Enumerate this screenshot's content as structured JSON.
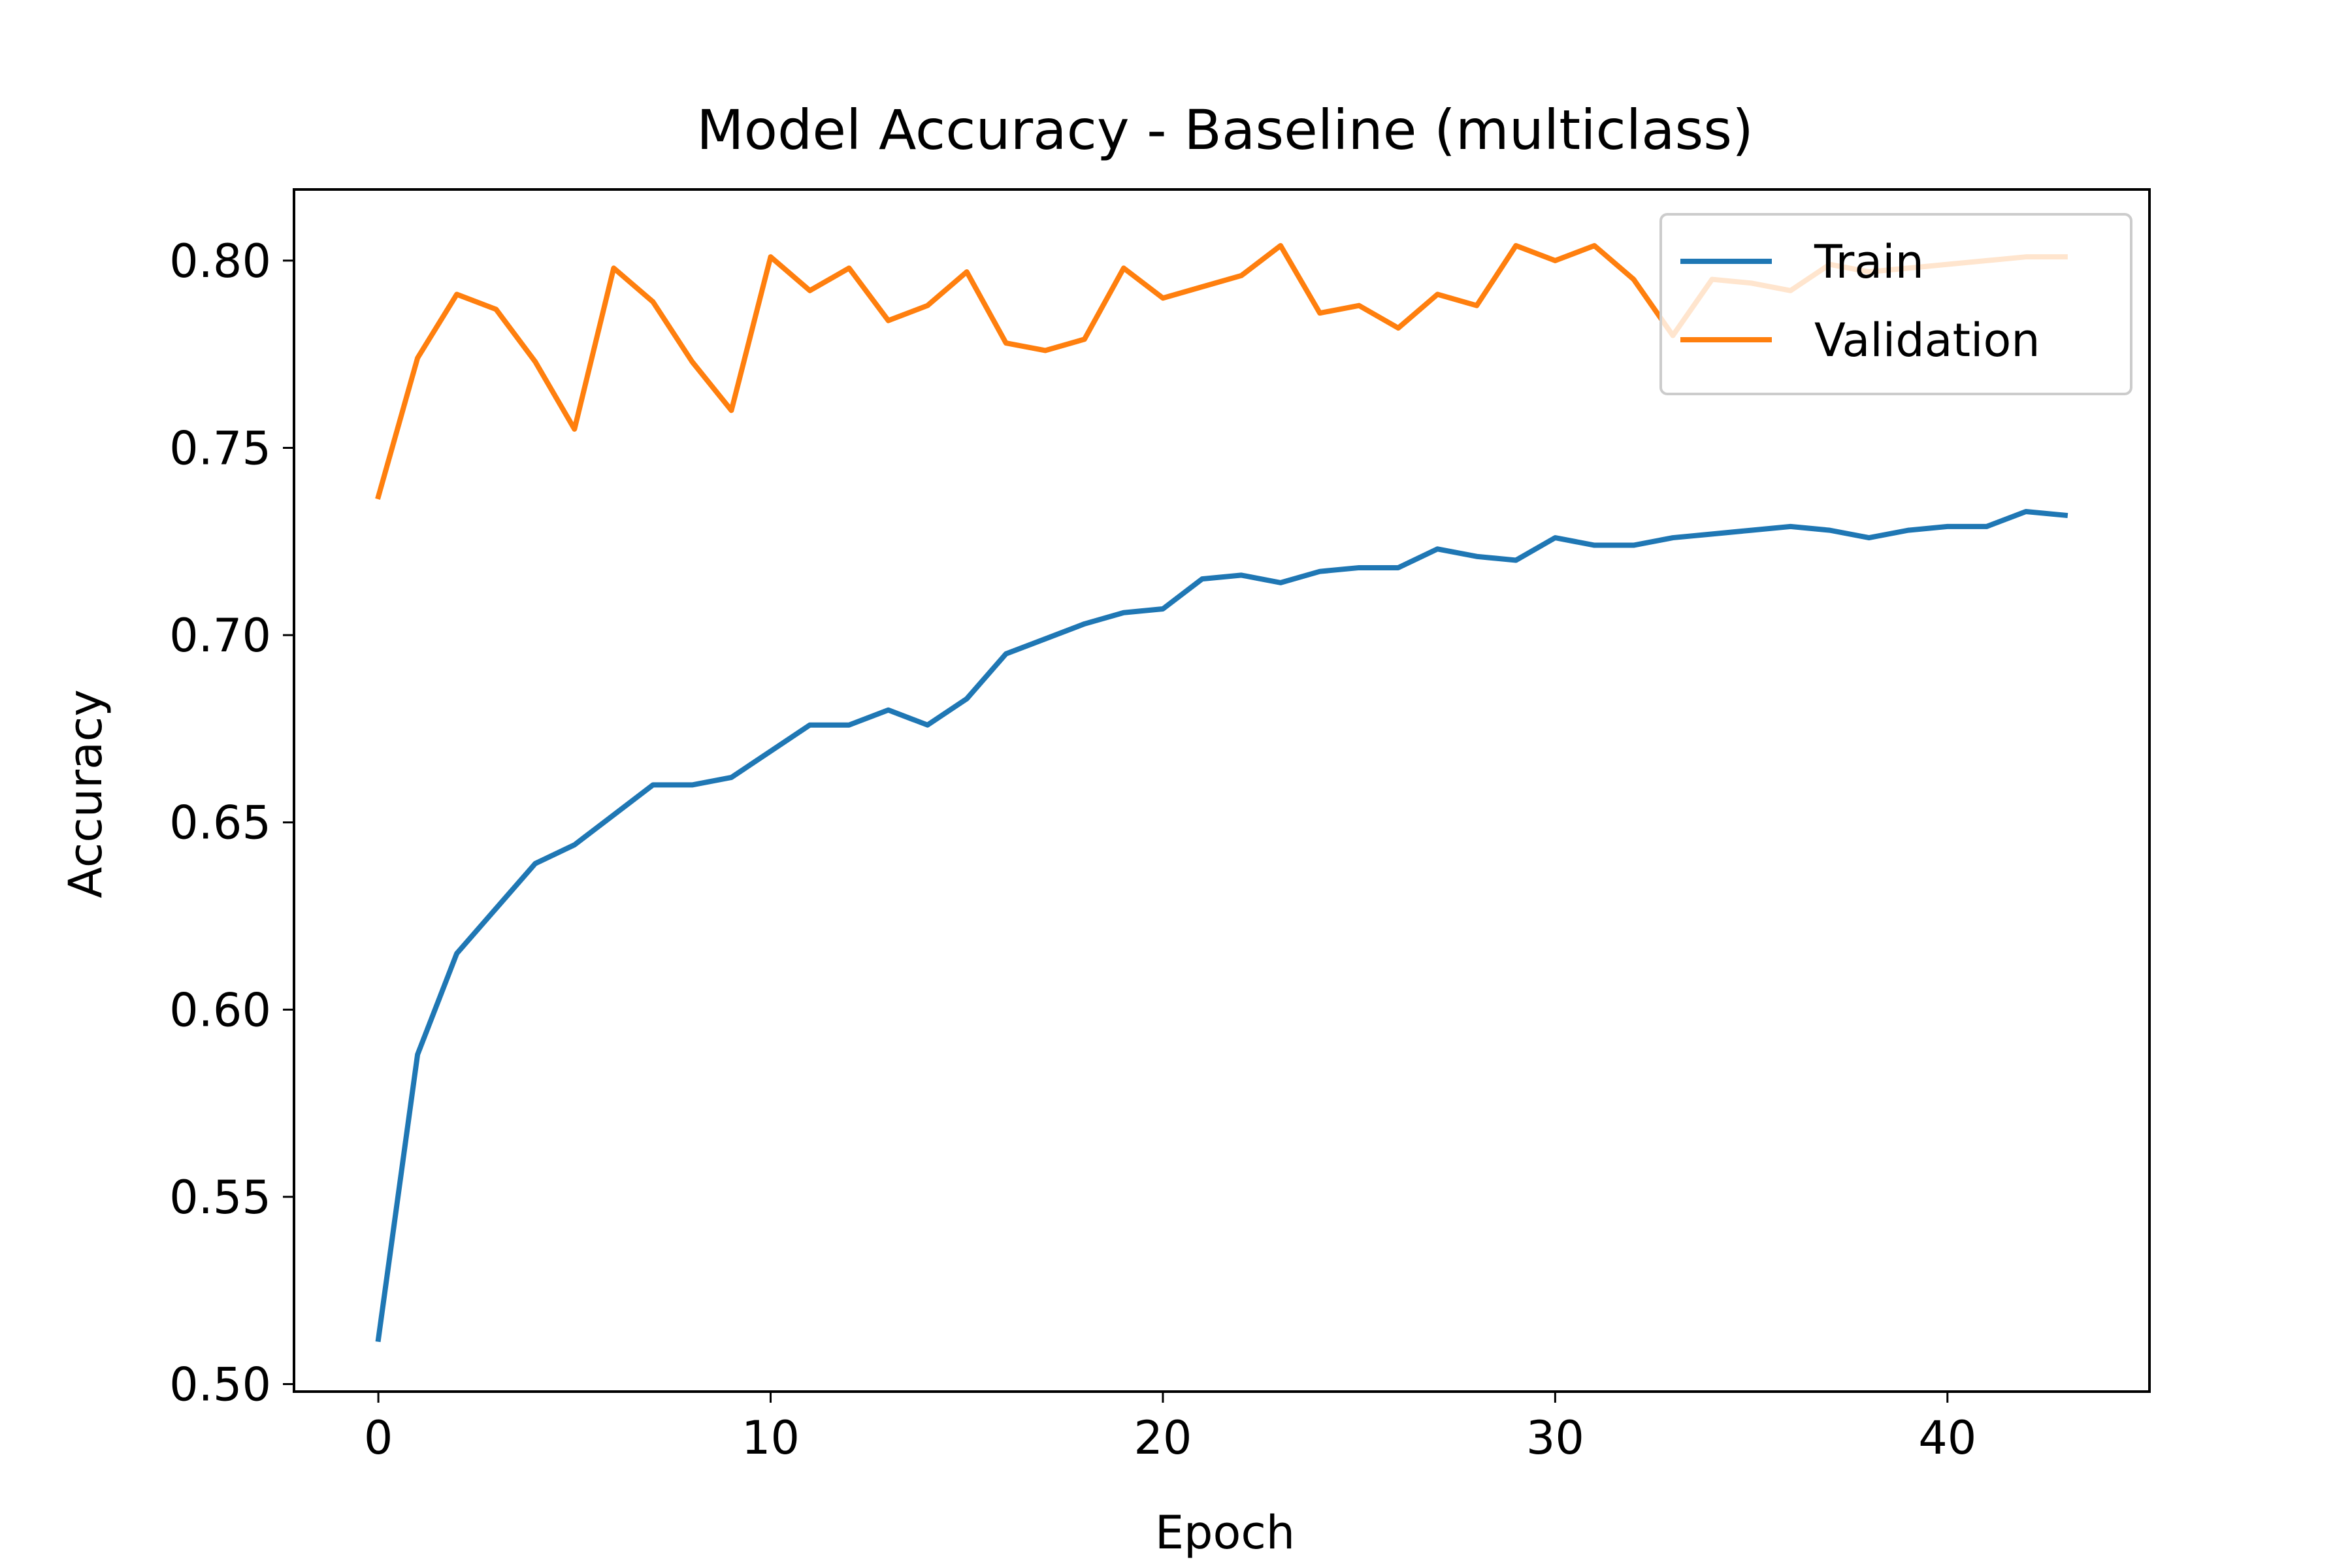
{
  "chart_data": {
    "type": "line",
    "title": "Model Accuracy - Baseline (multiclass)",
    "xlabel": "Epoch",
    "ylabel": "Accuracy",
    "xlim": [
      -2.15,
      45.15
    ],
    "ylim": [
      0.498,
      0.819
    ],
    "xticks": [
      0,
      10,
      20,
      30,
      40
    ],
    "yticks": [
      0.5,
      0.55,
      0.6,
      0.65,
      0.7,
      0.75,
      0.8
    ],
    "ytick_labels": [
      "0.50",
      "0.55",
      "0.60",
      "0.65",
      "0.70",
      "0.75",
      "0.80"
    ],
    "xtick_labels": [
      "0",
      "10",
      "20",
      "30",
      "40"
    ],
    "grid": false,
    "legend_position": "upper-right",
    "x": [
      0,
      1,
      2,
      3,
      4,
      5,
      6,
      7,
      8,
      9,
      10,
      11,
      12,
      13,
      14,
      15,
      16,
      17,
      18,
      19,
      20,
      21,
      22,
      23,
      24,
      25,
      26,
      27,
      28,
      29,
      30,
      31,
      32,
      33,
      34,
      35,
      36,
      37,
      38,
      39,
      40,
      41,
      42,
      43
    ],
    "series": [
      {
        "name": "Train",
        "color": "#1f77b4",
        "values": [
          0.512,
          0.588,
          0.615,
          0.627,
          0.639,
          0.644,
          0.652,
          0.66,
          0.66,
          0.662,
          0.669,
          0.676,
          0.676,
          0.68,
          0.676,
          0.683,
          0.695,
          0.699,
          0.703,
          0.706,
          0.707,
          0.715,
          0.716,
          0.714,
          0.717,
          0.718,
          0.718,
          0.723,
          0.721,
          0.72,
          0.726,
          0.724,
          0.724,
          0.726,
          0.727,
          0.728,
          0.729,
          0.728,
          0.726,
          0.728,
          0.729,
          0.729,
          0.733,
          0.732
        ]
      },
      {
        "name": "Validation",
        "color": "#ff7f0e",
        "values": [
          0.737,
          0.774,
          0.791,
          0.787,
          0.773,
          0.755,
          0.798,
          0.789,
          0.773,
          0.76,
          0.801,
          0.792,
          0.798,
          0.784,
          0.788,
          0.797,
          0.778,
          0.776,
          0.779,
          0.798,
          0.79,
          0.793,
          0.796,
          0.804,
          0.786,
          0.788,
          0.782,
          0.791,
          0.788,
          0.804,
          0.8,
          0.804,
          0.795,
          0.78,
          0.795,
          0.794,
          0.792,
          0.799,
          0.797,
          0.798,
          0.799,
          0.8,
          0.801,
          0.801
        ]
      }
    ]
  }
}
